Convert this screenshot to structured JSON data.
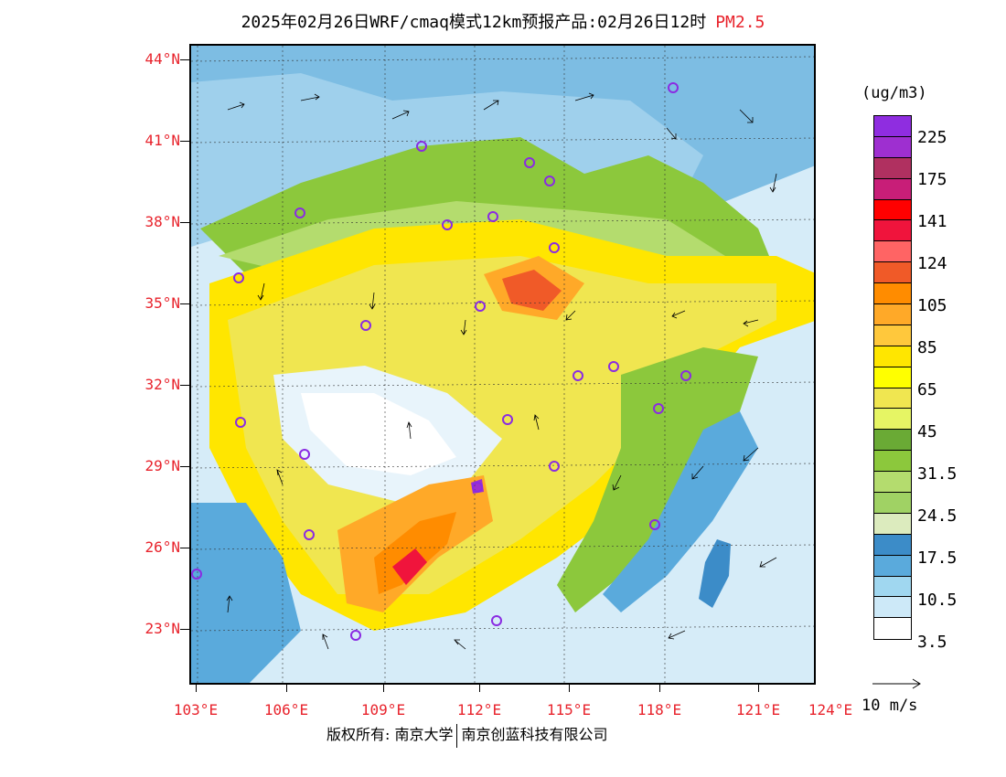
{
  "title": {
    "main": "2025年02月26日WRF/cmaq模式12km预报产品:02月26日12时",
    "variable": "PM2.5"
  },
  "colors": {
    "label_red": "#e8232c",
    "frame": "#000000"
  },
  "latitude_labels": [
    "44°N",
    "41°N",
    "38°N",
    "35°N",
    "32°N",
    "29°N",
    "26°N",
    "23°N"
  ],
  "longitude_labels": [
    "103°E",
    "106°E",
    "109°E",
    "112°E",
    "115°E",
    "118°E",
    "121°E",
    "124°E"
  ],
  "legend": {
    "unit": "(ug/m3)",
    "swatches": [
      "#8f2de0",
      "#9e2fd0",
      "#b03060",
      "#c81e78",
      "#ff0000",
      "#f0143c",
      "#ff6464",
      "#f05a28",
      "#ff8c00",
      "#ffa928",
      "#ffc83c",
      "#ffe600",
      "#ffff00",
      "#f0e650",
      "#e6f564",
      "#6aaa35",
      "#8cc83c",
      "#b4dc6e",
      "#a0d264",
      "#dcebbe",
      "#3c8cc8",
      "#5aaadc",
      "#a0d7f0",
      "#cde9f8",
      "#ffffff"
    ],
    "labels": [
      "225",
      "175",
      "141",
      "124",
      "105",
      "85",
      "65",
      "45",
      "31.5",
      "24.5",
      "17.5",
      "10.5",
      "3.5"
    ]
  },
  "wind_reference": {
    "label": "10 m/s"
  },
  "footer": {
    "copyright": "版权所有: 南京大学",
    "company": "南京创蓝科技有限公司"
  }
}
